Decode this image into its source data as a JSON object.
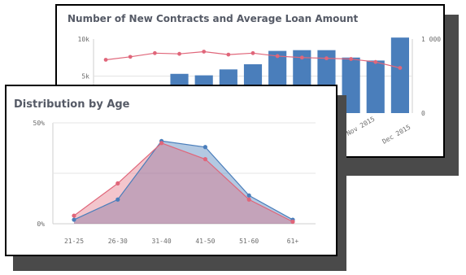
{
  "colors": {
    "bar": "#4a7ebb",
    "contracts_line": "#e0667a",
    "age_series_a": "#4a7ebb",
    "age_series_b": "#e0667a",
    "shadow": "#4a4a4a"
  },
  "chart_data": [
    {
      "type": "bar",
      "title": "Number of New Contracts and Average Loan Amount",
      "y_left_ticks": [
        "10k",
        "5k"
      ],
      "y_right_ticks": [
        "1 000",
        "0"
      ],
      "ylim_left": [
        0,
        10000
      ],
      "ylim_right": [
        0,
        1000
      ],
      "x_tick_labels": [
        "Nov 2015",
        "Dec 2015"
      ],
      "series": [
        {
          "kind": "bar",
          "values": [
            null,
            null,
            null,
            5300,
            5100,
            5900,
            6600,
            8400,
            8500,
            8500,
            7500,
            7100,
            10200
          ]
        },
        {
          "kind": "line",
          "values": [
            720,
            760,
            810,
            800,
            830,
            790,
            810,
            770,
            750,
            740,
            730,
            690,
            610
          ]
        }
      ]
    },
    {
      "type": "area",
      "title": "Distribution by Age",
      "categories": [
        "21-25",
        "26-30",
        "31-40",
        "41-50",
        "51-60",
        "61+"
      ],
      "y_ticks": [
        "50%",
        "0%"
      ],
      "ylim": [
        0,
        0.5
      ],
      "grid": true,
      "series": [
        {
          "values": [
            0.02,
            0.12,
            0.41,
            0.38,
            0.14,
            0.02
          ]
        },
        {
          "values": [
            0.04,
            0.2,
            0.4,
            0.32,
            0.12,
            0.01
          ]
        }
      ]
    }
  ]
}
